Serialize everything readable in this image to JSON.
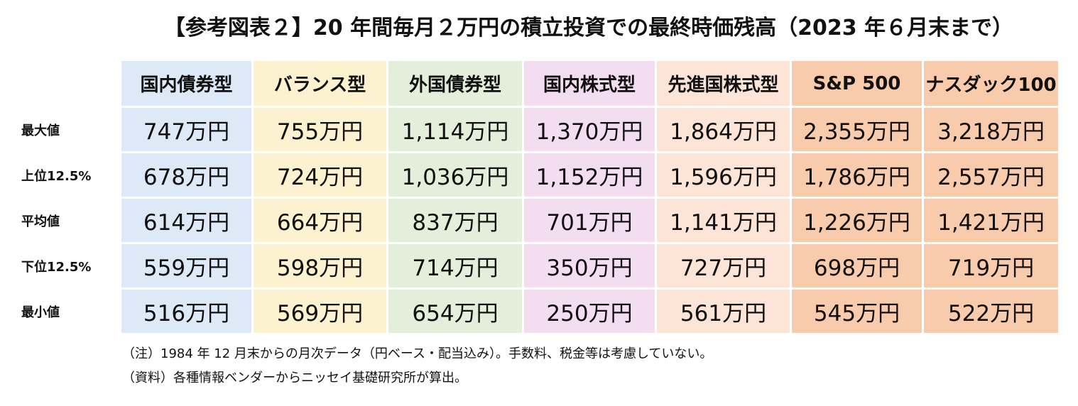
{
  "title": "【参考図表２】20 年間毎月２万円の積立投資での最終時価残高（2023 年６月末まで）",
  "table": {
    "columns": [
      "国内債券型",
      "バランス型",
      "外国債券型",
      "国内株式型",
      "先進国株式型",
      "S&P 500",
      "ナスダック100"
    ],
    "rows": [
      {
        "label": "最大値",
        "values": [
          "747万円",
          "755万円",
          "1,114万円",
          "1,370万円",
          "1,864万円",
          "2,355万円",
          "3,218万円"
        ]
      },
      {
        "label": "上位12.5%",
        "values": [
          "678万円",
          "724万円",
          "1,036万円",
          "1,152万円",
          "1,596万円",
          "1,786万円",
          "2,557万円"
        ]
      },
      {
        "label": "平均値",
        "values": [
          "614万円",
          "664万円",
          "837万円",
          "701万円",
          "1,141万円",
          "1,226万円",
          "1,421万円"
        ]
      },
      {
        "label": "下位12.5%",
        "values": [
          "559万円",
          "598万円",
          "714万円",
          "350万円",
          "727万円",
          "698万円",
          "719万円"
        ]
      },
      {
        "label": "最小値",
        "values": [
          "516万円",
          "569万円",
          "654万円",
          "250万円",
          "561万円",
          "545万円",
          "522万円"
        ]
      }
    ]
  },
  "colors": {
    "domestic_bond": "#dde9f6",
    "balanced": "#fdf2cf",
    "foreign_bond": "#e3eedb",
    "domestic_equity": "#f3ddf1",
    "developed_equity": "#fce4d7",
    "us_index": "#f8cbad"
  },
  "notes": {
    "note": "（注）1984 年 12 月末からの月次データ（円ベース・配当込み）。手数料、税金等は考慮していない。",
    "source": "（資料）各種情報ベンダーからニッセイ基礎研究所が算出。"
  }
}
